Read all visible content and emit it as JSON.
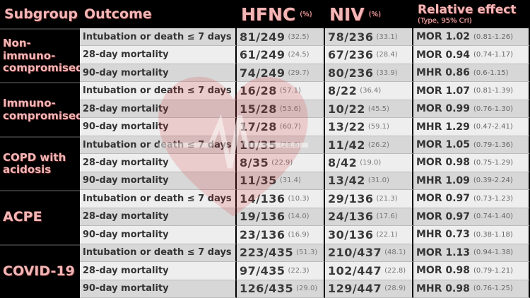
{
  "header": {
    "subgroup": "Subgroup",
    "outcome": "Outcome",
    "hfnc": "HFNC",
    "hfnc_unit": "(%)",
    "niv": "NIV",
    "niv_unit": "(%)",
    "effect": "Relative effect",
    "effect_sub": "(Type, 95% CrI)"
  },
  "groups": [
    {
      "name": "Non-immuno-compromised",
      "rows": [
        [
          "Intubation or death ≤ 7 days",
          "81/249",
          "(32.5)",
          "78/236",
          "(33.1)",
          "MOR 1.02",
          "(0.81-1.26)"
        ],
        [
          "28-day mortality",
          "61/249",
          "(24.5)",
          "67/236",
          "(28.4)",
          "MOR 0.94",
          "(0.74-1.17)"
        ],
        [
          "90-day mortality",
          "74/249",
          "(29.7)",
          "80/236",
          "(33.9)",
          "MHR 0.86",
          "(0.6-1.15)"
        ]
      ]
    },
    {
      "name": "Immuno-compromised",
      "rows": [
        [
          "Intubation or death ≤ 7 days",
          "16/28",
          "(57.1)",
          "8/22",
          "(36.4)",
          "MOR 1.07",
          "(0.81-1.39)"
        ],
        [
          "28-day mortality",
          "15/28",
          "(53.6)",
          "10/22",
          "(45.5)",
          "MOR 0.99",
          "(0.76-1.30)"
        ],
        [
          "90-day mortality",
          "17/28",
          "(60.7)",
          "13/22",
          "(59.1)",
          "MHR 1.29",
          "(0.47-2.41)"
        ]
      ]
    },
    {
      "name": "COPD with acidosis",
      "rows": [
        [
          "Intubation or death ≤ 7 days",
          "10/35",
          "(28.6)",
          "11/42",
          "(26.2)",
          "MOR 1.05",
          "(0.79-1.36)"
        ],
        [
          "28-day mortality",
          "8/35",
          "(22.9)",
          "8/42",
          "(19.0)",
          "MOR 0.98",
          "(0.75-1.29)"
        ],
        [
          "90-day mortality",
          "11/35",
          "(31.4)",
          "13/42",
          "(31.0)",
          "MHR 1.09",
          "(0.39-2.24)"
        ]
      ]
    },
    {
      "name": "ACPE",
      "rows": [
        [
          "Intubation or death ≤ 7 days",
          "14/136",
          "(10.3)",
          "29/136",
          "(21.3)",
          "MOR 0.97",
          "(0.73-1.23)"
        ],
        [
          "28-day mortality",
          "19/136",
          "(14.0)",
          "24/136",
          "(17.6)",
          "MOR 0.97",
          "(0.74-1.40)"
        ],
        [
          "90-day mortality",
          "23/136",
          "(16.9)",
          "30/136",
          "(22.1)",
          "MHR 0.73",
          "(0.38-1.18)"
        ]
      ]
    },
    {
      "name": "COVID-19",
      "rows": [
        [
          "Intubation or death ≤ 7 days",
          "223/435",
          "(51.3)",
          "210/437",
          "(48.1)",
          "MOR 1.13",
          "(0.94-1.38)"
        ],
        [
          "28-day mortality",
          "97/435",
          "(22.3)",
          "102/447",
          "(22.8)",
          "MOR 0.98",
          "(0.79-1.21)"
        ],
        [
          "90-day mortality",
          "126/435",
          "(29.0)",
          "129/447",
          "(28.9)",
          "MHR 0.98",
          "(0.76-1.25)"
        ]
      ]
    }
  ]
}
